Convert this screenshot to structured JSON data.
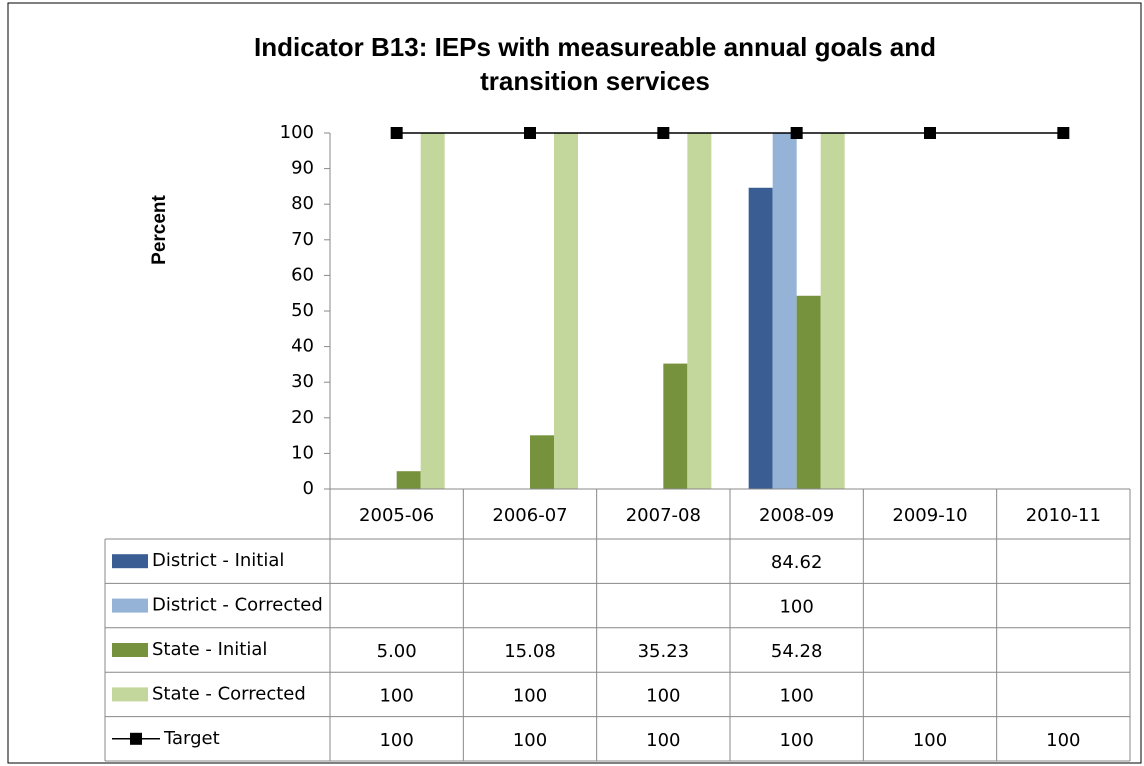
{
  "chart_data": {
    "type": "bar",
    "title": "Indicator B13: IEPs with measureable annual goals and transition services",
    "y_label": "Percent",
    "categories": [
      "2005-06",
      "2006-07",
      "2007-08",
      "2008-09",
      "2009-10",
      "2010-11"
    ],
    "series": [
      {
        "name": "District - Initial",
        "color": "#3a5e93",
        "values": [
          null,
          null,
          null,
          84.62,
          null,
          null
        ]
      },
      {
        "name": "District - Corrected",
        "color": "#95b3d7",
        "values": [
          null,
          null,
          null,
          100,
          null,
          null
        ]
      },
      {
        "name": "State - Initial",
        "color": "#76923c",
        "values": [
          5.0,
          15.08,
          35.23,
          54.28,
          null,
          null
        ],
        "value_labels": [
          "5.00",
          "15.08",
          "35.23",
          "54.28",
          null,
          null
        ]
      },
      {
        "name": "State - Corrected",
        "color": "#c3d69b",
        "values": [
          100,
          100,
          100,
          100,
          null,
          null
        ]
      },
      {
        "name": "Target",
        "color": "#000000",
        "type": "line",
        "values": [
          100,
          100,
          100,
          100,
          100,
          100
        ]
      }
    ],
    "ylim": [
      0,
      100
    ],
    "yticks": [
      0,
      10,
      20,
      30,
      40,
      50,
      60,
      70,
      80,
      90,
      100
    ],
    "grid": false,
    "data_table": true
  }
}
